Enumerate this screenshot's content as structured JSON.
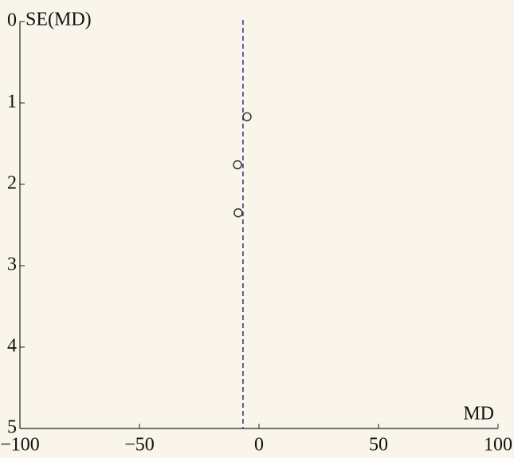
{
  "chart_data": {
    "type": "scatter",
    "x_label": "MD",
    "y_label": "SE(MD)",
    "x": [
      -5,
      -9,
      -8.7
    ],
    "values": [
      1.17,
      1.76,
      2.35
    ],
    "color": "#333333",
    "reference_line_x": -6.7,
    "reference_line_color": "#2a2a8a",
    "xlim": [
      -100,
      100
    ],
    "xticks": [
      {
        "value": -100,
        "label": "−100"
      },
      {
        "value": -50,
        "label": "−50"
      },
      0,
      50,
      100
    ],
    "ylim": [
      0,
      5
    ],
    "yticks": [
      0,
      1,
      2,
      3,
      4,
      5
    ],
    "y_inverted": true,
    "grid": false
  }
}
